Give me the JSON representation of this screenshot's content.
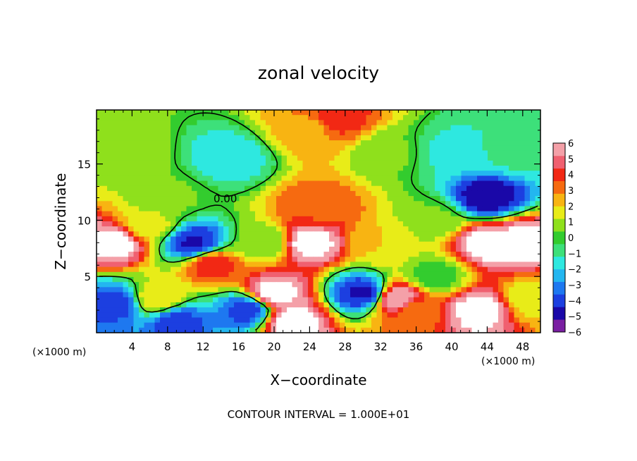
{
  "chart_data": {
    "type": "heatmap",
    "title": "zonal velocity",
    "xlabel": "X−coordinate",
    "ylabel": "Z−coordinate",
    "x_unit_left": "(×1000 m)",
    "x_unit_right": "(×1000 m)",
    "xlim": [
      0,
      50
    ],
    "ylim": [
      0,
      19.8
    ],
    "xticks": [
      4,
      8,
      12,
      16,
      20,
      24,
      28,
      32,
      36,
      40,
      44,
      48
    ],
    "yticks": [
      5,
      10,
      15
    ],
    "colorbar": {
      "min": -6,
      "max": 6,
      "ticks": [
        6,
        5,
        4,
        3,
        2,
        1,
        0,
        -1,
        -2,
        -3,
        -4,
        -5,
        -6
      ],
      "colors": [
        "#7a1fa2",
        "#1a08a8",
        "#1c3fe0",
        "#1e78f0",
        "#23b6f0",
        "#2ee8e0",
        "#3de07a",
        "#33cc2e",
        "#8fe01c",
        "#e8ec18",
        "#f8b412",
        "#f66a10",
        "#f22814",
        "#f06070",
        "#f4a0a8"
      ]
    },
    "contour_label": "0.00",
    "footer": "CONTOUR INTERVAL = 1.000E+01",
    "field_samples": [
      {
        "x": 3,
        "z": 16,
        "v": 1.0
      },
      {
        "x": 8,
        "z": 12,
        "v": 0.5
      },
      {
        "x": 15,
        "z": 15.5,
        "v": -1.8
      },
      {
        "x": 24,
        "z": 18,
        "v": 2.5
      },
      {
        "x": 27,
        "z": 19,
        "v": 4.0
      },
      {
        "x": 25,
        "z": 11,
        "v": 3.5
      },
      {
        "x": 24,
        "z": 8,
        "v": 6.5
      },
      {
        "x": 2,
        "z": 8,
        "v": 6.5
      },
      {
        "x": 11,
        "z": 8,
        "v": -4.5
      },
      {
        "x": 20,
        "z": 3.5,
        "v": 6.5
      },
      {
        "x": 22,
        "z": 1,
        "v": 6.5
      },
      {
        "x": 40,
        "z": 16,
        "v": -1.5
      },
      {
        "x": 44,
        "z": 12,
        "v": -5.0
      },
      {
        "x": 44,
        "z": 8,
        "v": 6.5
      },
      {
        "x": 48,
        "z": 8,
        "v": 6.5
      },
      {
        "x": 43,
        "z": 2,
        "v": 6.5
      },
      {
        "x": 38,
        "z": 5,
        "v": 0.0
      },
      {
        "x": 33,
        "z": 16,
        "v": 0.5
      },
      {
        "x": 17,
        "z": 2,
        "v": -4.0
      },
      {
        "x": 30,
        "z": 3.5,
        "v": -4.5
      },
      {
        "x": 2,
        "z": 2.5,
        "v": -4.0
      },
      {
        "x": 7,
        "z": 3,
        "v": 2.0
      },
      {
        "x": 9,
        "z": 1,
        "v": -4.0
      },
      {
        "x": 49,
        "z": 3,
        "v": 1.5
      },
      {
        "x": 38,
        "z": 10,
        "v": 0.5
      },
      {
        "x": 32,
        "z": 8,
        "v": 2.0
      },
      {
        "x": 13,
        "z": 6,
        "v": 4.0
      },
      {
        "x": 34,
        "z": 3,
        "v": 6.0
      },
      {
        "x": 36,
        "z": 2,
        "v": 3.0
      },
      {
        "x": 47,
        "z": 16,
        "v": -1.0
      },
      {
        "x": 6,
        "z": 9.5,
        "v": 1.5
      },
      {
        "x": 19,
        "z": 8,
        "v": 0.5
      }
    ]
  }
}
